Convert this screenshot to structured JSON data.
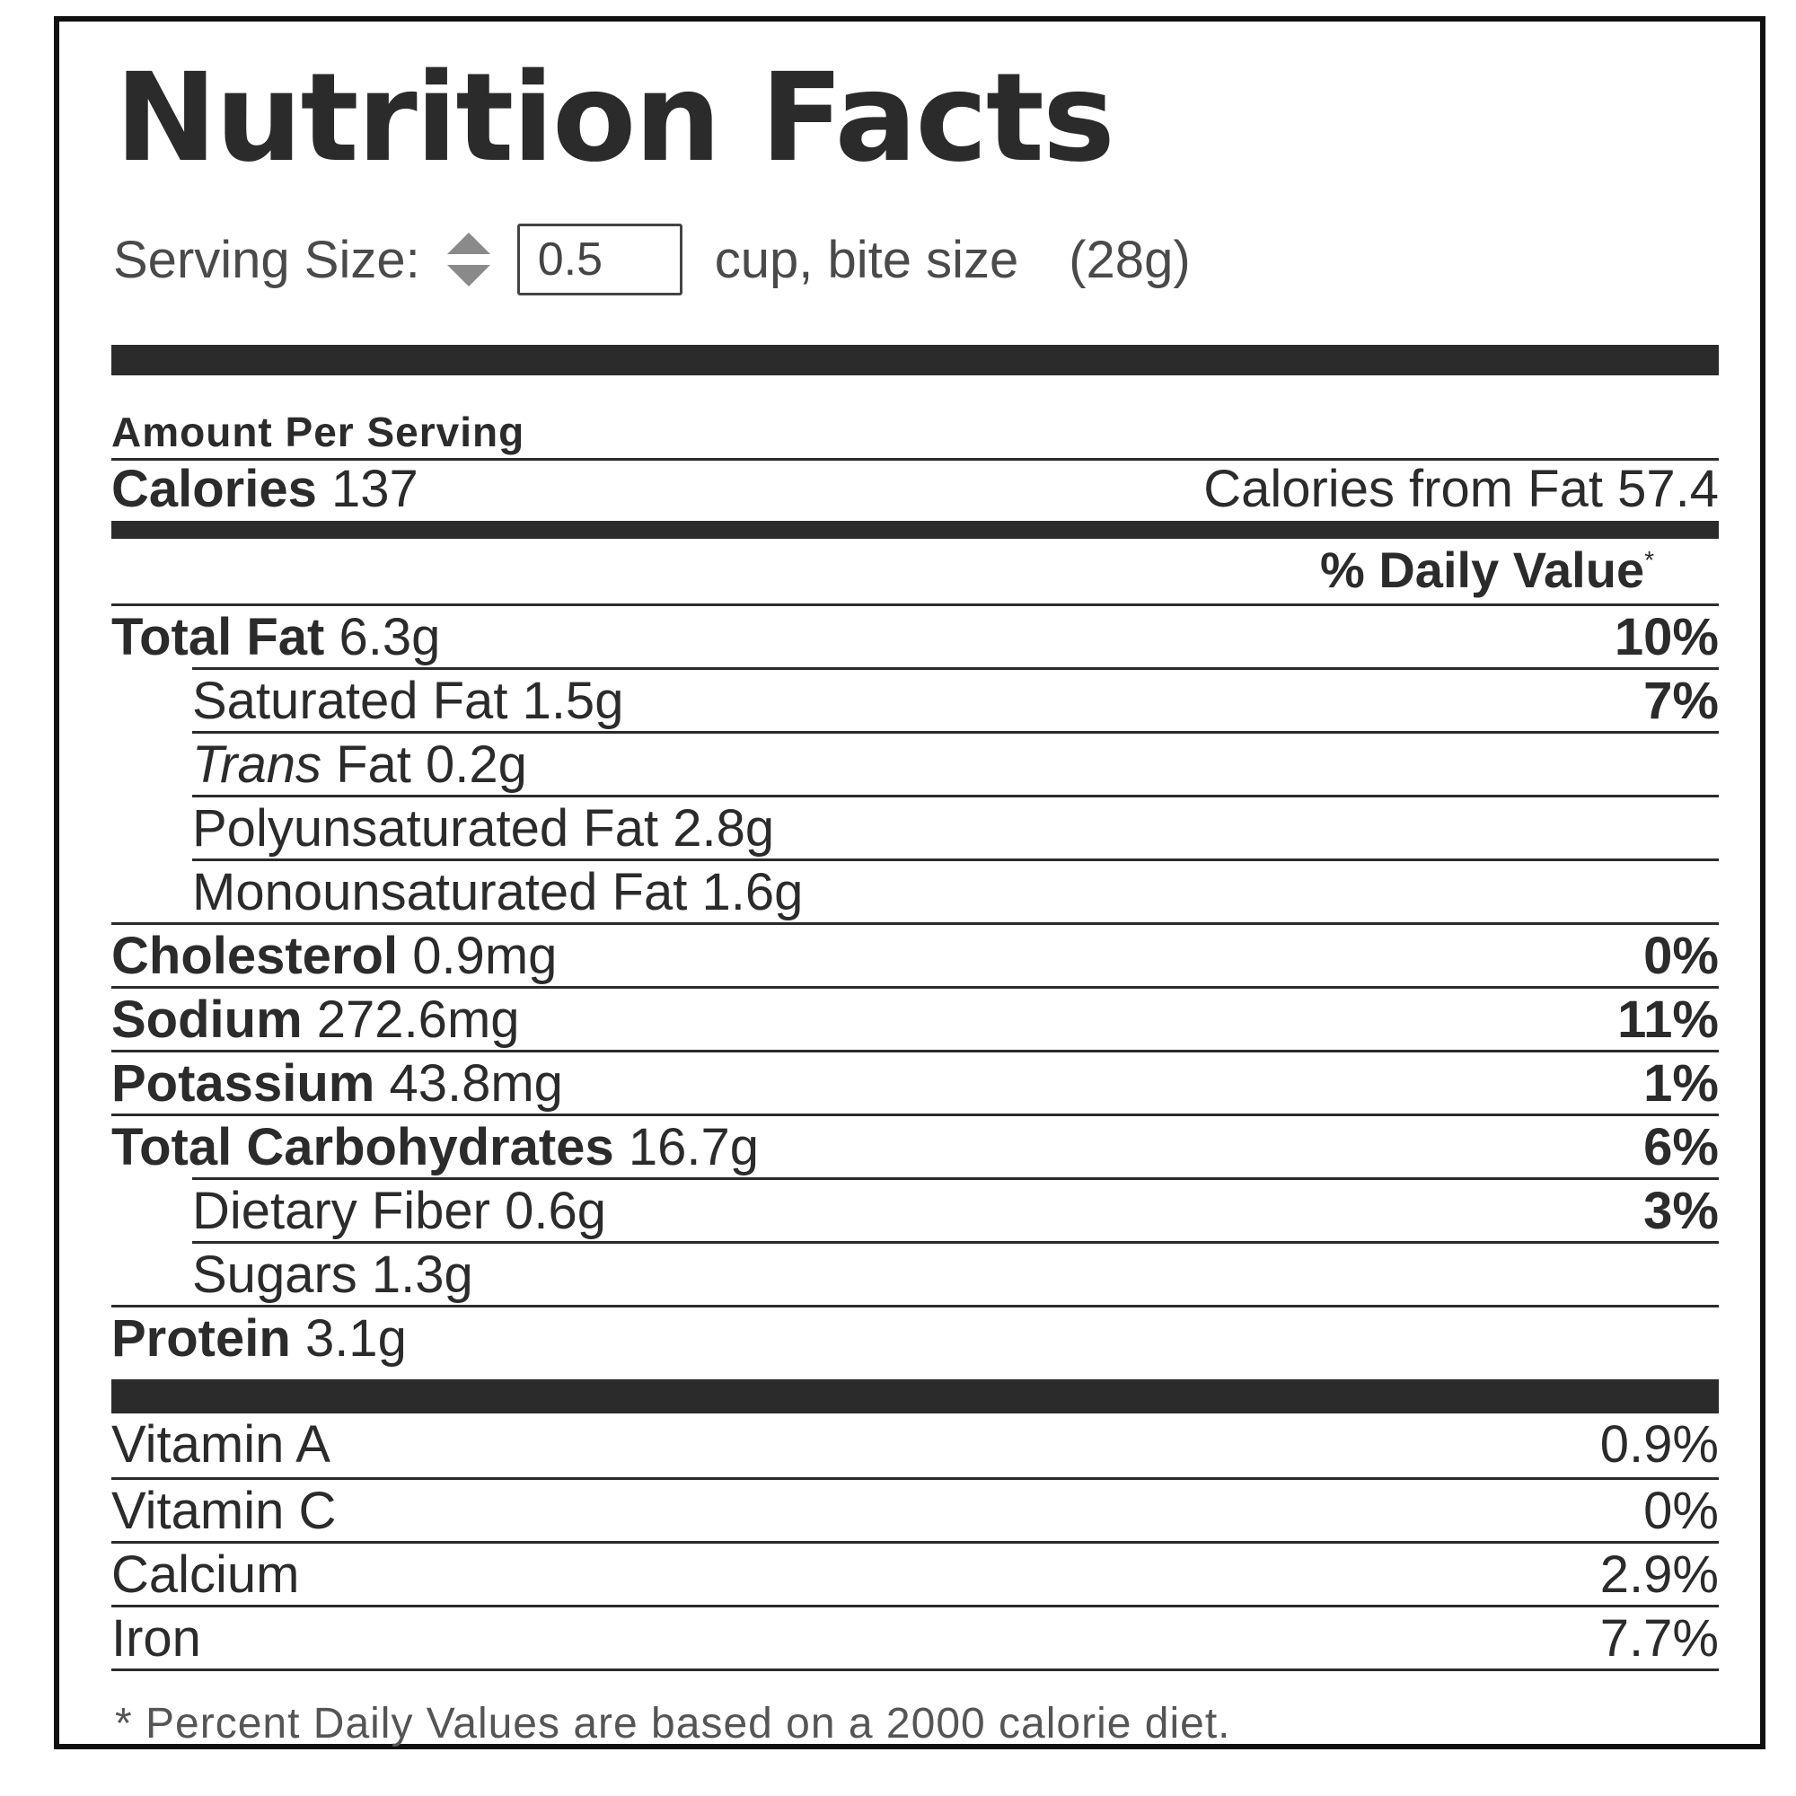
{
  "title": "Nutrition Facts",
  "serving": {
    "label": "Serving Size:",
    "quantity": "0.5",
    "unit": "cup, bite size",
    "weight": "(28g)"
  },
  "amount_per_serving": "Amount Per Serving",
  "calories": {
    "label": "Calories",
    "value": "137",
    "from_fat_label": "Calories from Fat",
    "from_fat_value": "57.4"
  },
  "daily_value_header": "% Daily Value",
  "daily_value_mark": "*",
  "nutrients": {
    "total_fat": {
      "label": "Total Fat",
      "amount": "6.3g",
      "dv": "10%"
    },
    "saturated_fat": {
      "label": "Saturated Fat",
      "amount": "1.5g",
      "dv": "7%"
    },
    "trans_fat": {
      "label_italic": "Trans",
      "label": "Fat",
      "amount": "0.2g"
    },
    "polyunsaturated_fat": {
      "label": "Polyunsaturated Fat",
      "amount": "2.8g"
    },
    "monounsaturated_fat": {
      "label": "Monounsaturated Fat",
      "amount": "1.6g"
    },
    "cholesterol": {
      "label": "Cholesterol",
      "amount": "0.9mg",
      "dv": "0%"
    },
    "sodium": {
      "label": "Sodium",
      "amount": "272.6mg",
      "dv": "11%"
    },
    "potassium": {
      "label": "Potassium",
      "amount": "43.8mg",
      "dv": "1%"
    },
    "total_carbohydrates": {
      "label": "Total Carbohydrates",
      "amount": "16.7g",
      "dv": "6%"
    },
    "dietary_fiber": {
      "label": "Dietary Fiber",
      "amount": "0.6g",
      "dv": "3%"
    },
    "sugars": {
      "label": "Sugars",
      "amount": "1.3g"
    },
    "protein": {
      "label": "Protein",
      "amount": "3.1g"
    }
  },
  "vitamins": {
    "vitamin_a": {
      "label": "Vitamin A",
      "dv": "0.9%"
    },
    "vitamin_c": {
      "label": "Vitamin C",
      "dv": "0%"
    },
    "calcium": {
      "label": "Calcium",
      "dv": "2.9%"
    },
    "iron": {
      "label": "Iron",
      "dv": "7.7%"
    }
  },
  "footnote": "* Percent Daily Values are based on a 2000 calorie diet.",
  "colors": {
    "text": "#2b2b2b",
    "rule": "#2b2b2b",
    "border": "#111111",
    "muted": "#555555"
  }
}
